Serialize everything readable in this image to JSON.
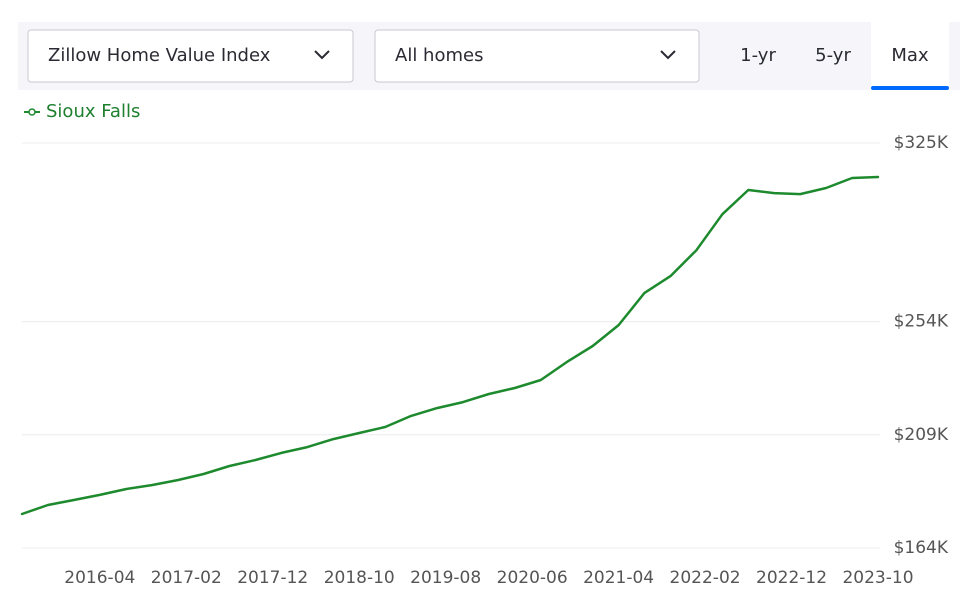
{
  "controls": {
    "metric": "Zillow Home Value Index",
    "home_type": "All homes",
    "tabs": [
      "1-yr",
      "5-yr",
      "Max"
    ],
    "active_tab": 2
  },
  "chart_data": {
    "type": "line",
    "x": [
      "2015-07",
      "2015-10",
      "2016-01",
      "2016-04",
      "2016-07",
      "2016-10",
      "2017-01",
      "2017-04",
      "2017-07",
      "2017-10",
      "2018-01",
      "2018-04",
      "2018-07",
      "2018-10",
      "2019-01",
      "2019-04",
      "2019-07",
      "2019-10",
      "2020-01",
      "2020-04",
      "2020-07",
      "2020-10",
      "2021-01",
      "2021-04",
      "2021-07",
      "2021-10",
      "2022-01",
      "2022-04",
      "2022-07",
      "2022-10",
      "2023-01",
      "2023-04",
      "2023-07",
      "2023-10"
    ],
    "series": [
      {
        "name": "Sioux Falls",
        "color": "#1e8a2e",
        "values": [
          177500,
          181100,
          183100,
          185100,
          187400,
          189000,
          191000,
          193400,
          196600,
          199000,
          201800,
          204100,
          207300,
          209700,
          212100,
          216500,
          219600,
          222000,
          225200,
          227600,
          230800,
          237900,
          244300,
          252600,
          265400,
          272100,
          282400,
          296700,
          306300,
          305100,
          304700,
          307100,
          311100,
          311500
        ]
      }
    ],
    "xlim": [
      "2015-07",
      "2023-10"
    ],
    "xticks": [
      "2016-04",
      "2017-02",
      "2017-12",
      "2018-10",
      "2019-08",
      "2020-06",
      "2021-04",
      "2022-02",
      "2022-12",
      "2023-10"
    ],
    "ylim": [
      164000,
      325000
    ],
    "yticks": [
      {
        "value": 164000,
        "label": "$164K"
      },
      {
        "value": 209000,
        "label": "$209K"
      },
      {
        "value": 254000,
        "label": "$254K"
      },
      {
        "value": 325000,
        "label": "$325K"
      }
    ],
    "grid": true,
    "legend": "top-left"
  }
}
